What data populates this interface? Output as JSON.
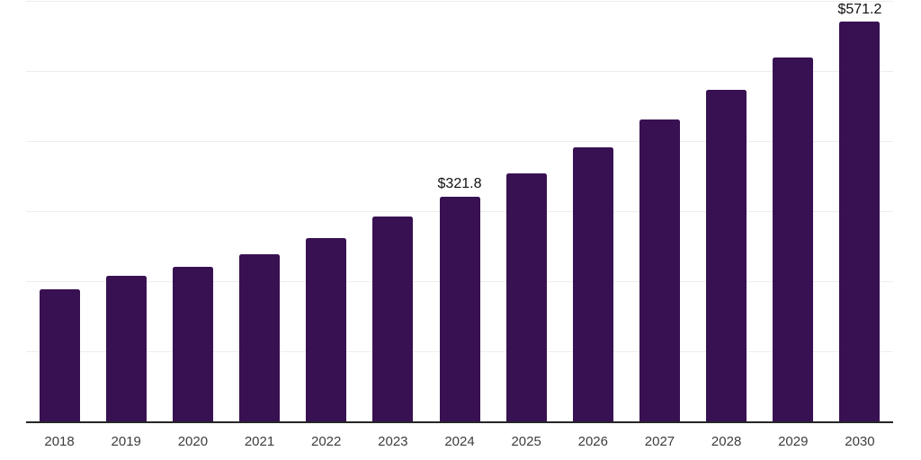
{
  "chart_data": {
    "type": "bar",
    "title": "",
    "xlabel": "",
    "ylabel": "",
    "categories": [
      "2018",
      "2019",
      "2020",
      "2021",
      "2022",
      "2023",
      "2024",
      "2025",
      "2026",
      "2027",
      "2028",
      "2029",
      "2030"
    ],
    "values": [
      189.2,
      209.1,
      221.5,
      239.0,
      262.7,
      292.9,
      321.8,
      354.6,
      391.2,
      431.2,
      472.9,
      520.1,
      571.2
    ],
    "data_labels": [
      {
        "category": "2024",
        "text": "$321.8"
      },
      {
        "category": "2030",
        "text": "$571.2"
      }
    ],
    "ylim": [
      0,
      600
    ],
    "gridline_interval": 100,
    "grid": true,
    "legend": "none",
    "y_tick_labels_visible": false,
    "colors": {
      "bar": "#381152",
      "gridline": "#ededed",
      "axis": "#262626",
      "tick_label": "#3d3d3d",
      "data_label": "#111111",
      "background": "#ffffff"
    }
  }
}
